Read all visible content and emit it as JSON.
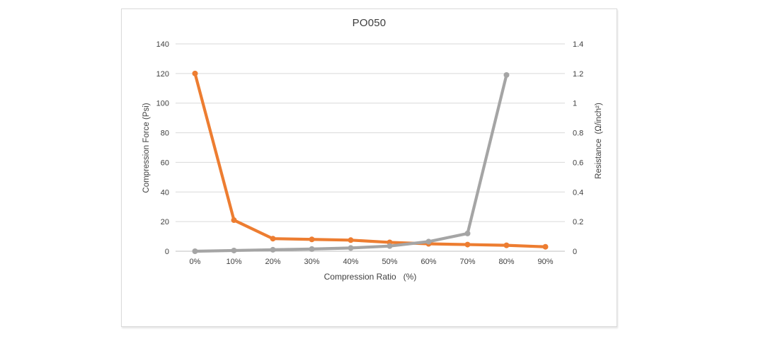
{
  "colors": {
    "accent_orange": "#ED7D31",
    "accent_gray": "#A5A5A5",
    "gridline": "#D9D9D9",
    "axis_line": "#BFBFBF",
    "text": "#404040",
    "chart_border": "#D9D9D9",
    "background": "#FFFFFF"
  },
  "chart_data": {
    "type": "line",
    "title": "PO050",
    "grid": true,
    "legend": false,
    "x": {
      "label": "Compression Ratio   (%)",
      "categories": [
        "0%",
        "10%",
        "20%",
        "30%",
        "40%",
        "50%",
        "60%",
        "70%",
        "80%",
        "90%"
      ]
    },
    "y_left": {
      "label": "Compression Force (Psi)",
      "min": 0,
      "max": 140,
      "ticks": [
        "0",
        "20",
        "40",
        "60",
        "80",
        "100",
        "120",
        "140"
      ]
    },
    "y_right": {
      "label": "Resistance  (Ω/inch²)",
      "min": 0,
      "max": 1.4,
      "ticks": [
        "0",
        "0.2",
        "0.4",
        "0.6",
        "0.8",
        "1",
        "1.2",
        "1.4"
      ]
    },
    "series": [
      {
        "name": "Compression Force",
        "axis": "left",
        "color": "#ED7D31",
        "marker": "circle",
        "values": [
          120,
          21,
          8.5,
          8,
          7.5,
          6,
          5,
          4.5,
          4,
          3
        ]
      },
      {
        "name": "Resistance",
        "axis": "right",
        "color": "#A5A5A5",
        "marker": "circle",
        "values": [
          0,
          0.005,
          0.01,
          0.015,
          0.022,
          0.035,
          0.065,
          0.12,
          1.19,
          null
        ]
      }
    ]
  }
}
